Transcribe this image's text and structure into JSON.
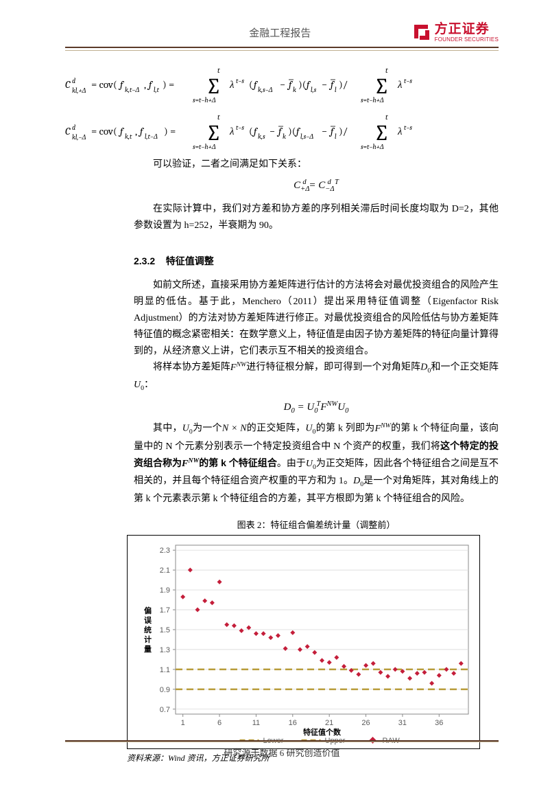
{
  "header": {
    "title": "金融工程报告",
    "logo": {
      "cn": "方正证券",
      "en": "FOUNDER SECURITIES",
      "color": "#c8102e"
    }
  },
  "formulas": {
    "f1_lhs": "C_{kl,+Δ}^d = cov(f_{k,t−Δ}, f_{l,t}) = ",
    "f2_lhs": "C_{kl,−Δ}^d = cov(f_{k,t}, f_{l,t−Δ}) = ",
    "verify": "可以验证，二者之间满足如下关系：",
    "f3": "C_{+Δ}^d = C_{−Δ}^{d  T}",
    "f4": "D₀ = U₀ᵀ F^{NW} U₀"
  },
  "para1": "在实际计算中，我们对方差和协方差的序列相关滞后时间长度均取为 D=2，其他参数设置为 h=252，半衰期为 90。",
  "section": {
    "num": "2.3.2",
    "title": "特征值调整"
  },
  "para2": "如前文所述，直接采用协方差矩阵进行估计的方法将会对最优投资组合的风险产生明显的低估。基于此，Menchero（2011）提出采用特征值调整（Eigenfactor Risk Adjustment）的方法对协方差矩阵进行修正。对最优投资组合的风险低估与协方差矩阵特征值的概念紧密相关：在数学意义上，特征值是由因子协方差矩阵的特征向量计算得到的，从经济意义上讲，它们表示互不相关的投资组合。",
  "para3_a": "将样本协方差矩阵",
  "para3_b": "进行特征根分解，即可得到一个对角矩阵",
  "para3_c": "和一个正交矩阵",
  "para3_d": "：",
  "para4_a": "其中，",
  "para4_b": "为一个",
  "para4_c": "的正交矩阵，",
  "para4_d": "的第 k 列即为",
  "para4_e": "的第 k 个特征向量，该向量中的 N 个元素分别表示一个特定投资组合中 N 个资产的权重，我们将",
  "para4_bold": "这个特定的投资组合称为",
  "para4_bold2": "的第 k 个特征组合",
  "para4_f": "。由于",
  "para4_g": "为正交矩阵，因此各个特征组合之间是互不相关的，并且每个特征组合资产权重的平方和为 1。",
  "para4_h": "是一个对角矩阵，其对角线上的第 k 个元素表示第 k 个特征组合的方差，其平方根即为第 k 个特征组合的风险。",
  "chart": {
    "title": "图表 2：特征组合偏差统计量（调整前）",
    "type": "scatter",
    "ylabel": "偏误统计量",
    "xlabel": "特征值个数",
    "y_ticks": [
      0.7,
      0.9,
      1.1,
      1.3,
      1.5,
      1.7,
      1.9,
      2.1,
      2.3
    ],
    "x_ticks": [
      1,
      6,
      11,
      16,
      21,
      26,
      31,
      36
    ],
    "ylim": [
      0.65,
      2.35
    ],
    "xlim": [
      0,
      40
    ],
    "ref_lines": [
      {
        "name": "Lower",
        "y": 0.9,
        "color": "#b89c3a",
        "dash": true
      },
      {
        "name": "Upper",
        "y": 1.1,
        "color": "#b89c3a",
        "dash": true
      }
    ],
    "series": {
      "name": "RAW",
      "color": "#c41e3a",
      "marker": "diamond",
      "marker_size": 7,
      "data": [
        [
          1,
          1.83
        ],
        [
          2,
          2.1
        ],
        [
          3,
          1.7
        ],
        [
          4,
          1.79
        ],
        [
          5,
          1.77
        ],
        [
          6,
          1.98
        ],
        [
          7,
          1.55
        ],
        [
          8,
          1.54
        ],
        [
          9,
          1.49
        ],
        [
          10,
          1.52
        ],
        [
          11,
          1.46
        ],
        [
          12,
          1.46
        ],
        [
          13,
          1.42
        ],
        [
          14,
          1.44
        ],
        [
          15,
          1.31
        ],
        [
          16,
          1.47
        ],
        [
          17,
          1.3
        ],
        [
          18,
          1.33
        ],
        [
          19,
          1.27
        ],
        [
          20,
          1.19
        ],
        [
          21,
          1.17
        ],
        [
          22,
          1.22
        ],
        [
          23,
          1.13
        ],
        [
          24,
          1.09
        ],
        [
          25,
          1.05
        ],
        [
          26,
          1.14
        ],
        [
          27,
          1.16
        ],
        [
          28,
          1.07
        ],
        [
          29,
          1.03
        ],
        [
          30,
          1.1
        ],
        [
          31,
          1.08
        ],
        [
          32,
          1.01
        ],
        [
          33,
          1.06
        ],
        [
          34,
          1.07
        ],
        [
          35,
          0.96
        ],
        [
          36,
          1.04
        ],
        [
          37,
          1.1
        ],
        [
          38,
          1.06
        ],
        [
          39,
          1.16
        ]
      ]
    },
    "legend": [
      "Lower",
      "Upper",
      "RAW"
    ],
    "background": "#ffffff",
    "grid_color": "#d9d9d9",
    "axis_color": "#8a8a8a",
    "tick_fontsize": 11,
    "label_fontsize": 11
  },
  "source": "资料来源：Wind 资讯，方正证券研究所",
  "footer": "研究源于数据 6 研究创造价值"
}
